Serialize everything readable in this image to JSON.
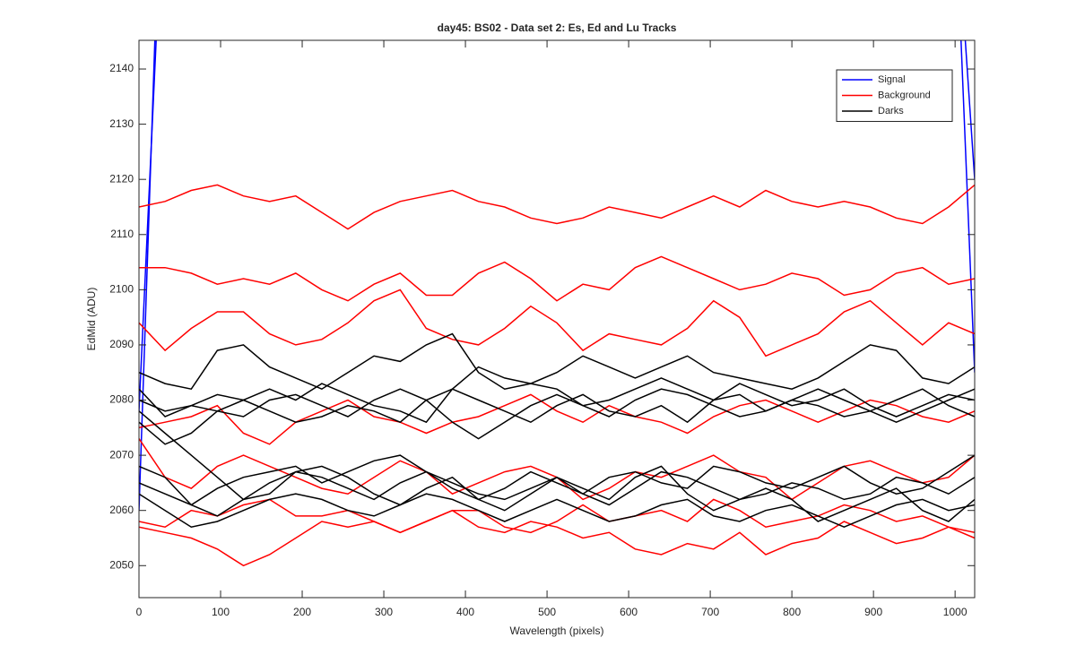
{
  "chart_data": {
    "type": "line",
    "title": "day45: BS02 - Data set 2: Es, Ed and Lu Tracks",
    "xlabel": "Wavelength (pixels)",
    "ylabel": "EdMid (ADU)",
    "x": [
      0,
      32,
      64,
      96,
      128,
      160,
      192,
      224,
      256,
      288,
      320,
      352,
      384,
      416,
      448,
      480,
      512,
      544,
      576,
      608,
      640,
      672,
      704,
      736,
      768,
      800,
      832,
      864,
      896,
      928,
      960,
      992,
      1024
    ],
    "xlim": [
      0,
      1024
    ],
    "ylim": [
      2044.2,
      2145.2
    ],
    "xticks": [
      0,
      100,
      200,
      300,
      400,
      500,
      600,
      700,
      800,
      900,
      1000
    ],
    "yticks": [
      2050,
      2060,
      2070,
      2080,
      2090,
      2100,
      2110,
      2120,
      2130,
      2140
    ],
    "legend": "upper right",
    "series": [
      {
        "name": "Signal",
        "color": "#0000ff",
        "lines": [
          [
            2060,
            2200,
            null,
            null,
            null,
            null,
            null,
            null,
            null,
            null,
            null,
            null,
            null,
            null,
            null,
            null,
            null,
            null,
            null,
            null,
            null,
            null,
            null,
            null,
            null,
            null,
            null,
            null,
            null,
            null,
            null,
            2200,
            2085
          ],
          [
            2078,
            2180,
            null,
            null,
            null,
            null,
            null,
            null,
            null,
            null,
            null,
            null,
            null,
            null,
            null,
            null,
            null,
            null,
            null,
            null,
            null,
            null,
            null,
            null,
            null,
            null,
            null,
            null,
            null,
            null,
            null,
            2190,
            2120
          ]
        ]
      },
      {
        "name": "Background",
        "color": "#ff0000",
        "lines": [
          [
            2115,
            2116,
            2118,
            2119,
            2117,
            2116,
            2117,
            2114,
            2111,
            2114,
            2116,
            2117,
            2118,
            2116,
            2115,
            2113,
            2112,
            2113,
            2115,
            2114,
            2113,
            2115,
            2117,
            2115,
            2118,
            2116,
            2115,
            2116,
            2115,
            2113,
            2112,
            2115,
            2119
          ],
          [
            2104,
            2104,
            2103,
            2101,
            2102,
            2101,
            2103,
            2100,
            2098,
            2101,
            2103,
            2099,
            2099,
            2103,
            2105,
            2102,
            2098,
            2101,
            2100,
            2104,
            2106,
            2104,
            2102,
            2100,
            2101,
            2103,
            2102,
            2099,
            2100,
            2103,
            2104,
            2101,
            2102
          ],
          [
            2094,
            2089,
            2093,
            2096,
            2096,
            2092,
            2090,
            2091,
            2094,
            2098,
            2100,
            2093,
            2091,
            2090,
            2093,
            2097,
            2094,
            2089,
            2092,
            2091,
            2090,
            2093,
            2098,
            2095,
            2088,
            2090,
            2092,
            2096,
            2098,
            2094,
            2090,
            2094,
            2092
          ],
          [
            2075,
            2076,
            2077,
            2079,
            2074,
            2072,
            2076,
            2078,
            2080,
            2077,
            2076,
            2074,
            2076,
            2077,
            2079,
            2081,
            2078,
            2076,
            2079,
            2077,
            2076,
            2074,
            2077,
            2079,
            2080,
            2078,
            2076,
            2078,
            2080,
            2079,
            2077,
            2076,
            2078
          ],
          [
            2073,
            2066,
            2064,
            2068,
            2070,
            2068,
            2066,
            2064,
            2063,
            2066,
            2069,
            2067,
            2063,
            2065,
            2067,
            2068,
            2066,
            2062,
            2064,
            2067,
            2066,
            2068,
            2070,
            2067,
            2066,
            2062,
            2065,
            2068,
            2069,
            2067,
            2065,
            2066,
            2070
          ],
          [
            2058,
            2057,
            2060,
            2059,
            2061,
            2062,
            2059,
            2059,
            2060,
            2058,
            2056,
            2058,
            2060,
            2060,
            2057,
            2056,
            2058,
            2061,
            2058,
            2059,
            2060,
            2058,
            2062,
            2060,
            2057,
            2058,
            2059,
            2061,
            2060,
            2058,
            2059,
            2057,
            2056
          ],
          [
            2057,
            2056,
            2055,
            2053,
            2050,
            2052,
            2055,
            2058,
            2057,
            2058,
            2056,
            2058,
            2060,
            2057,
            2056,
            2058,
            2057,
            2055,
            2056,
            2053,
            2052,
            2054,
            2053,
            2056,
            2052,
            2054,
            2055,
            2058,
            2056,
            2054,
            2055,
            2057,
            2055
          ]
        ]
      },
      {
        "name": "Darks",
        "color": "#000000",
        "lines": [
          [
            2085,
            2083,
            2082,
            2089,
            2090,
            2086,
            2084,
            2082,
            2085,
            2088,
            2087,
            2090,
            2092,
            2085,
            2082,
            2083,
            2085,
            2088,
            2086,
            2084,
            2086,
            2088,
            2085,
            2084,
            2083,
            2082,
            2084,
            2087,
            2090,
            2089,
            2084,
            2083,
            2086
          ],
          [
            2080,
            2078,
            2079,
            2081,
            2080,
            2082,
            2080,
            2083,
            2081,
            2079,
            2078,
            2076,
            2082,
            2086,
            2084,
            2083,
            2082,
            2079,
            2080,
            2082,
            2084,
            2082,
            2080,
            2083,
            2081,
            2079,
            2080,
            2082,
            2079,
            2077,
            2079,
            2081,
            2080
          ],
          [
            2082,
            2077,
            2079,
            2078,
            2077,
            2080,
            2081,
            2079,
            2077,
            2080,
            2082,
            2080,
            2076,
            2073,
            2076,
            2079,
            2081,
            2079,
            2077,
            2080,
            2082,
            2081,
            2079,
            2077,
            2078,
            2080,
            2082,
            2080,
            2078,
            2076,
            2078,
            2080,
            2082
          ],
          [
            2076,
            2072,
            2074,
            2078,
            2080,
            2078,
            2076,
            2077,
            2079,
            2078,
            2076,
            2080,
            2082,
            2080,
            2078,
            2076,
            2079,
            2081,
            2078,
            2077,
            2079,
            2076,
            2080,
            2081,
            2078,
            2080,
            2079,
            2077,
            2078,
            2080,
            2082,
            2079,
            2077
          ],
          [
            2065,
            2063,
            2061,
            2064,
            2066,
            2067,
            2068,
            2065,
            2067,
            2069,
            2070,
            2067,
            2064,
            2062,
            2064,
            2067,
            2065,
            2063,
            2066,
            2067,
            2065,
            2064,
            2068,
            2067,
            2065,
            2064,
            2066,
            2068,
            2065,
            2063,
            2064,
            2067,
            2070
          ],
          [
            2068,
            2066,
            2061,
            2059,
            2062,
            2065,
            2067,
            2066,
            2064,
            2062,
            2065,
            2067,
            2065,
            2063,
            2062,
            2064,
            2066,
            2063,
            2061,
            2064,
            2067,
            2066,
            2064,
            2062,
            2063,
            2065,
            2064,
            2062,
            2063,
            2066,
            2065,
            2063,
            2066
          ],
          [
            2063,
            2060,
            2057,
            2058,
            2060,
            2062,
            2063,
            2062,
            2060,
            2059,
            2061,
            2063,
            2062,
            2060,
            2058,
            2060,
            2062,
            2060,
            2058,
            2059,
            2061,
            2062,
            2059,
            2058,
            2060,
            2061,
            2059,
            2057,
            2059,
            2061,
            2062,
            2060,
            2061
          ],
          [
            2078,
            2074,
            2070,
            2066,
            2062,
            2063,
            2067,
            2068,
            2066,
            2063,
            2061,
            2064,
            2066,
            2062,
            2060,
            2063,
            2066,
            2064,
            2062,
            2066,
            2068,
            2063,
            2060,
            2062,
            2064,
            2062,
            2058,
            2060,
            2062,
            2064,
            2060,
            2058,
            2062
          ]
        ]
      }
    ]
  }
}
